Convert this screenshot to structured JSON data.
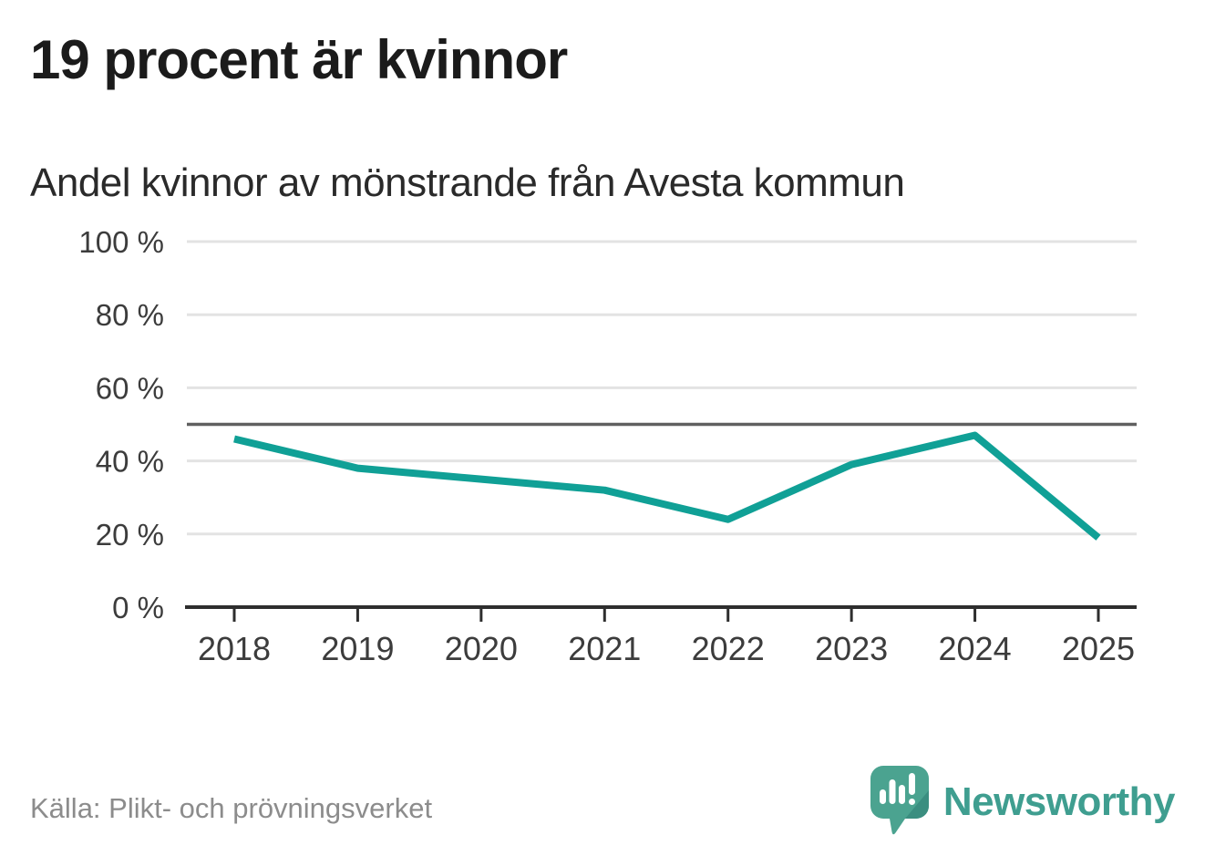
{
  "header": {
    "title": "19 procent är kvinnor",
    "subtitle": "Andel kvinnor av mönstrande från Avesta kommun"
  },
  "chart_data": {
    "type": "line",
    "title": "19 procent är kvinnor",
    "subtitle": "Andel kvinnor av mönstrande från Avesta kommun",
    "x": [
      "2018",
      "2019",
      "2020",
      "2021",
      "2022",
      "2023",
      "2024",
      "2025"
    ],
    "series": [
      {
        "name": "Andel kvinnor av mönstrande",
        "values": [
          46,
          38,
          35,
          32,
          24,
          39,
          47,
          19
        ]
      }
    ],
    "ylim": [
      0,
      100
    ],
    "yticks": [
      0,
      20,
      40,
      60,
      80,
      100
    ],
    "ytick_suffix": " %",
    "reference_line": 50,
    "grid": "horizontal",
    "legend": "none"
  },
  "footer": {
    "source": "Källa: Plikt- och prövningsverket",
    "brand": "Newsworthy"
  },
  "colors": {
    "line": "#10a096",
    "reference_line": "#606060",
    "axis": "#2e2e2e",
    "gridline": "#e3e3e3",
    "title": "#1b1b1b",
    "subtitle": "#2a2a2a",
    "tick_label": "#3c3c3c",
    "source": "#8c8c8c",
    "brand_text": "#3f9e90",
    "logo_fill": "#4ba390",
    "logo_shade": "#3b8e80"
  }
}
